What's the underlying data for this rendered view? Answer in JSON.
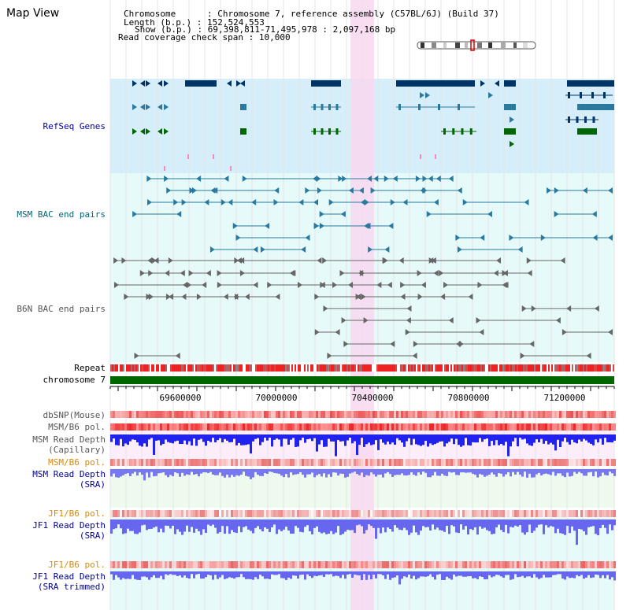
{
  "header": {
    "title": "Map View",
    "chromosome_label": "Chromosome",
    "chromosome_value": "Chromosome 7, reference assembly (C57BL/6J) (Build 37)",
    "length_label": "Length (b.p.)",
    "length_value": "152,524,553",
    "show_label": "Show (b.p.)",
    "show_value": "69,398,811-71,495,978 : 2,097,168 bp",
    "coverage_label": "Read coverage check span",
    "coverage_value": "10,000"
  },
  "tracks": {
    "refseq": "RefSeq Genes",
    "msm_bac": "MSM BAC end pairs",
    "b6n_bac": "B6N BAC end pairs",
    "repeat": "Repeat",
    "chromosome": "chromosome 7",
    "dbsnp": "dbSNP(Mouse)",
    "msm_b6_pol": "MSM/B6 pol.",
    "msm_read_depth_cap_1": "MSM Read Depth",
    "msm_read_depth_cap_2": "(Capillary)",
    "msm_b6_pol_2": "MSM/B6 pol.",
    "msm_read_depth_sra_1": "MSM Read Depth",
    "msm_read_depth_sra_2": "(SRA)",
    "jf1_b6_pol": "JF1/B6 pol.",
    "jf1_read_depth_sra_1": "JF1 Read Depth",
    "jf1_read_depth_sra_2": "(SRA)",
    "jf1_b6_pol_2": "JF1/B6 pol.",
    "jf1_read_depth_trim_1": "JF1 Read Depth",
    "jf1_read_depth_trim_2": "(SRA trimmed)"
  },
  "axis": {
    "ticks": [
      "69600000",
      "70000000",
      "70400000",
      "70800000",
      "71200000"
    ]
  },
  "colors": {
    "refseq_bg": "#d6eefa",
    "bac_bg": "#e6fafa",
    "highlight": "#f8d8f0",
    "chromosome_bar": "#006600",
    "label_blue": "#000099",
    "label_teal": "#006677",
    "label_gray": "#555555",
    "label_orange": "#dd8800"
  }
}
